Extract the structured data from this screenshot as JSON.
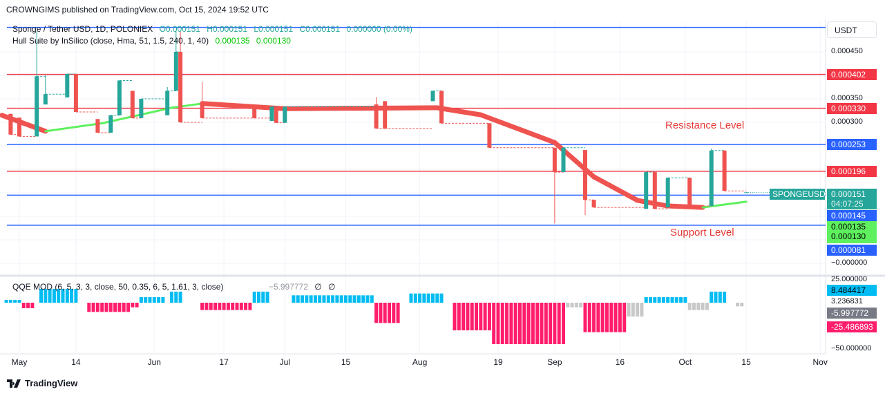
{
  "header": "CROWNGIMS published on TradingView.com, Oct 15, 2024 19:52 UTC",
  "legend": {
    "symbol": "Sponge / Tether USD, 1D, POLONIEX",
    "o": "O0.000151",
    "h": "H0.000151",
    "l": "L0.000151",
    "c": "C0.000151",
    "chg": "0.000000 (0.00%)",
    "hull": "Hull Suite by InSilico (close, Hma, 51, 1.5, 240, 1, 40)",
    "hull_v1": "0.000135",
    "hull_v2": "0.000130",
    "qqe": "QQE MOD (6, 5, 3, 3, close, 50, 0.35, 6, 5, 1.61, 3, close)",
    "qqe_v": "−5.997772",
    "qqe_na1": "∅",
    "qqe_na2": "∅"
  },
  "currency": "USDT",
  "annotations": {
    "resistance": "Resistance Level",
    "support": "Support Level"
  },
  "colors": {
    "up": "#26a69a",
    "down": "#ef5350",
    "blue_line": "#2962ff",
    "red_line": "#f23645",
    "hull_up": "#5ef05e",
    "hull_down": "#ef5350",
    "qqe_up": "#00bcf2",
    "qqe_down": "#ff1d6c",
    "qqe_neutral": "#c8c8c8"
  },
  "chart_data": [
    {
      "type": "candlestick",
      "ylim": [
        0,
        0.0005
      ],
      "price_ticks": [
        "0.000450",
        "0.000350",
        "0.000300",
        "−0.000000"
      ],
      "x_ticks": [
        [
          "2024-05-01",
          "May"
        ],
        [
          "2024-05-14",
          "14"
        ],
        [
          "2024-06-01",
          "Jun"
        ],
        [
          "2024-06-17",
          "17"
        ],
        [
          "2024-07-01",
          "Jul"
        ],
        [
          "2024-07-15",
          "15"
        ],
        [
          "2024-08-01",
          "Aug"
        ],
        [
          "2024-08-19",
          "19"
        ],
        [
          "2024-09-01",
          "Sep"
        ],
        [
          "2024-09-16",
          "16"
        ],
        [
          "2024-10-01",
          "Oct"
        ],
        [
          "2024-10-15",
          "15"
        ],
        [
          "2024-11-01",
          "Nov"
        ]
      ],
      "candles": [
        [
          "2024-04-29",
          0.000318,
          0.000318,
          0.000274,
          0.000274
        ],
        [
          "2024-05-01",
          0.00031,
          0.00031,
          0.00027,
          0.00027
        ],
        [
          "2024-05-05",
          0.00027,
          0.000494,
          0.00027,
          0.000398
        ],
        [
          "2024-05-07",
          0.000338,
          0.0004,
          0.000338,
          0.00036
        ],
        [
          "2024-05-12",
          0.000353,
          0.000398,
          0.000353,
          0.000403
        ],
        [
          "2024-05-14",
          0.000403,
          0.000403,
          0.000322,
          0.000322
        ],
        [
          "2024-05-19",
          0.000307,
          0.000307,
          0.000278,
          0.000278
        ],
        [
          "2024-05-22",
          0.000278,
          0.000315,
          0.000278,
          0.000315
        ],
        [
          "2024-05-24",
          0.000315,
          0.000389,
          0.000315,
          0.000389
        ],
        [
          "2024-05-27",
          0.000367,
          0.000367,
          0.000309,
          0.000309
        ],
        [
          "2024-05-29",
          0.000309,
          0.00035,
          0.000309,
          0.00035
        ],
        [
          "2024-06-04",
          0.000315,
          0.000375,
          0.000315,
          0.000367
        ],
        [
          "2024-06-06",
          0.000367,
          0.000494,
          0.000367,
          0.00045
        ],
        [
          "2024-06-07",
          0.00045,
          0.000494,
          0.0003,
          0.0003
        ],
        [
          "2024-06-12",
          0.000338,
          0.000386,
          0.000309,
          0.000309
        ],
        [
          "2024-06-24",
          0.00033,
          0.00033,
          0.000309,
          0.000309
        ],
        [
          "2024-06-28",
          0.000303,
          0.000333,
          0.000303,
          0.000333
        ],
        [
          "2024-06-29",
          0.000325,
          0.000325,
          0.000299,
          0.000299
        ],
        [
          "2024-07-01",
          0.000299,
          0.000333,
          0.000299,
          0.000333
        ],
        [
          "2024-07-22",
          0.000338,
          0.000354,
          0.000287,
          0.000287
        ],
        [
          "2024-07-24",
          0.000345,
          0.000345,
          0.000287,
          0.000287
        ],
        [
          "2024-08-04",
          0.000345,
          0.000367,
          0.000345,
          0.000367
        ],
        [
          "2024-08-06",
          0.000367,
          0.000367,
          0.000298,
          0.000298
        ],
        [
          "2024-08-17",
          0.000298,
          0.000298,
          0.000246,
          0.000246
        ],
        [
          "2024-09-01",
          0.000246,
          0.000246,
          8.5e-05,
          0.000194
        ],
        [
          "2024-09-03",
          0.000194,
          0.000246,
          0.000194,
          0.000246
        ],
        [
          "2024-09-08",
          0.000241,
          0.000241,
          0.000103,
          0.000135
        ],
        [
          "2024-09-10",
          0.000135,
          0.000135,
          0.000119,
          0.000119
        ],
        [
          "2024-09-22",
          0.000116,
          0.000194,
          0.000116,
          0.000194
        ],
        [
          "2024-09-24",
          0.000194,
          0.000194,
          0.000116,
          0.000116
        ],
        [
          "2024-09-27",
          0.000119,
          0.000182,
          0.000119,
          0.000182
        ],
        [
          "2024-10-02",
          0.000182,
          0.000182,
          0.000122,
          0.000122
        ],
        [
          "2024-10-07",
          0.000122,
          0.000244,
          0.000122,
          0.00024
        ],
        [
          "2024-10-10",
          0.00024,
          0.00024,
          0.000154,
          0.000154
        ],
        [
          "2024-10-15",
          0.000151,
          0.000151,
          0.000151,
          0.000151
        ]
      ],
      "hull": [
        [
          "2024-04-27",
          0.000315,
          "down"
        ],
        [
          "2024-05-07",
          0.000281,
          "up"
        ],
        [
          "2024-05-20",
          0.000298,
          "up"
        ],
        [
          "2024-06-05",
          0.000331,
          "up"
        ],
        [
          "2024-06-12",
          0.00034,
          "down"
        ],
        [
          "2024-07-01",
          0.000329,
          "down"
        ],
        [
          "2024-08-05",
          0.000331,
          "down"
        ],
        [
          "2024-08-15",
          0.000316,
          "down"
        ],
        [
          "2024-09-01",
          0.000257,
          "down"
        ],
        [
          "2024-09-10",
          0.000184,
          "down"
        ],
        [
          "2024-09-20",
          0.000134,
          "down"
        ],
        [
          "2024-09-27",
          0.000122,
          "down"
        ],
        [
          "2024-10-05",
          0.000119,
          "up"
        ],
        [
          "2024-10-15",
          0.000131,
          "up"
        ]
      ],
      "levels": [
        {
          "price": 0.000502,
          "color": "blue"
        },
        {
          "price": 0.000402,
          "label": "0.000402",
          "color": "red"
        },
        {
          "price": 0.00033,
          "label": "0.000330",
          "color": "red"
        },
        {
          "price": 0.000253,
          "label": "0.000253",
          "color": "blue"
        },
        {
          "price": 0.000196,
          "label": "0.000196",
          "color": "red"
        },
        {
          "price": 0.000145,
          "label": "0.000145",
          "color": "blue"
        },
        {
          "price": 8.1e-05,
          "label": "0.000081",
          "color": "blue"
        }
      ],
      "last_price": {
        "symbol": "SPONGEUSDT",
        "value": "0.000151",
        "countdown": "04:07:25"
      },
      "hull_badges": [
        "0.000135",
        "0.000130"
      ]
    },
    {
      "type": "bar",
      "title": "QQE MOD",
      "ylim": [
        -50,
        25
      ],
      "ticks": [
        "25.000000",
        "3.236831",
        "−50.000000"
      ],
      "badges": [
        {
          "v": "8.484417",
          "c": "up"
        },
        {
          "v": "-5.997772",
          "c": "neutral"
        },
        {
          "v": "-25.486893",
          "c": "down"
        }
      ],
      "runs": [
        [
          "2024-04-28",
          "2024-05-01",
          3,
          "up"
        ],
        [
          "2024-05-02",
          "2024-05-04",
          -6,
          "down"
        ],
        [
          "2024-05-06",
          "2024-05-14",
          15,
          "up"
        ],
        [
          "2024-05-17",
          "2024-05-26",
          -10,
          "down"
        ],
        [
          "2024-05-27",
          "2024-05-28",
          -5,
          "down"
        ],
        [
          "2024-05-29",
          "2024-06-03",
          6,
          "up"
        ],
        [
          "2024-06-05",
          "2024-06-07",
          12,
          "up"
        ],
        [
          "2024-06-12",
          "2024-06-23",
          -8,
          "down"
        ],
        [
          "2024-06-24",
          "2024-06-27",
          12,
          "up"
        ],
        [
          "2024-07-03",
          "2024-07-21",
          8,
          "up"
        ],
        [
          "2024-07-22",
          "2024-07-27",
          -22,
          "down"
        ],
        [
          "2024-07-30",
          "2024-08-06",
          10,
          "up"
        ],
        [
          "2024-08-09",
          "2024-08-17",
          -30,
          "down"
        ],
        [
          "2024-08-18",
          "2024-09-03",
          -45,
          "down"
        ],
        [
          "2024-09-04",
          "2024-09-07",
          -5,
          "neutral"
        ],
        [
          "2024-09-08",
          "2024-09-17",
          -32,
          "down"
        ],
        [
          "2024-09-18",
          "2024-09-21",
          -15,
          "neutral"
        ],
        [
          "2024-09-22",
          "2024-10-01",
          6,
          "up"
        ],
        [
          "2024-10-02",
          "2024-10-06",
          -8,
          "neutral"
        ],
        [
          "2024-10-07",
          "2024-10-10",
          12,
          "up"
        ],
        [
          "2024-10-13",
          "2024-10-14",
          -4,
          "neutral"
        ]
      ]
    }
  ],
  "footer": {
    "brand": "TradingView"
  }
}
